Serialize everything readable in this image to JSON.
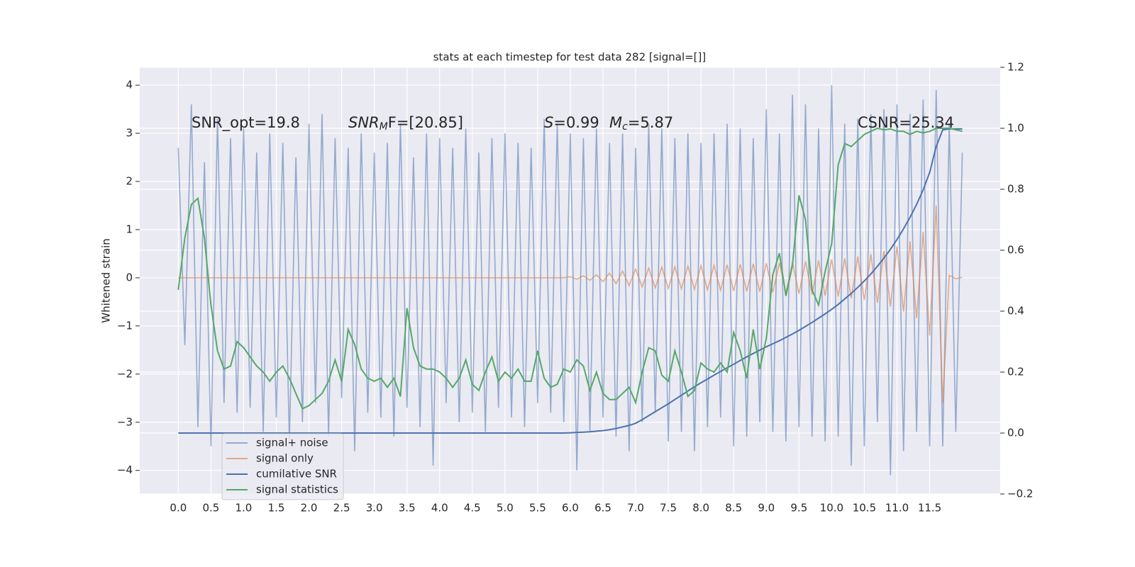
{
  "chart_data": {
    "type": "line",
    "title": "stats at each timestep for test data 282 [signal=[]]",
    "ylabel": "Whitened strain",
    "grid": true,
    "legend": "lower left",
    "annotations": [
      {
        "text": "SNR_opt=19.8"
      },
      {
        "text": "SNR",
        "sub": "M",
        "rest": "F=[20.85]"
      },
      {
        "text": "S",
        "rest": "=0.99"
      },
      {
        "text": "M",
        "sub": "c",
        "rest": "=5.87"
      },
      {
        "text": "CSNR=25.34"
      }
    ],
    "xlim": [
      -0.59,
      12.58
    ],
    "xticks": [
      {
        "value": 0,
        "label": "0.0"
      },
      {
        "value": 0.5,
        "label": "0.5"
      },
      {
        "value": 1,
        "label": "1.0"
      },
      {
        "value": 1.5,
        "label": "1.5"
      },
      {
        "value": 2,
        "label": "2.0"
      },
      {
        "value": 2.5,
        "label": "2.5"
      },
      {
        "value": 3,
        "label": "3.0"
      },
      {
        "value": 3.5,
        "label": "3.5"
      },
      {
        "value": 4,
        "label": "4.0"
      },
      {
        "value": 4.5,
        "label": "4.5"
      },
      {
        "value": 5,
        "label": "5.0"
      },
      {
        "value": 5.5,
        "label": "5.5"
      },
      {
        "value": 6,
        "label": "6.0"
      },
      {
        "value": 6.5,
        "label": "6.5"
      },
      {
        "value": 7,
        "label": "7.0"
      },
      {
        "value": 7.5,
        "label": "7.5"
      },
      {
        "value": 8,
        "label": "8.0"
      },
      {
        "value": 8.5,
        "label": "8.5"
      },
      {
        "value": 9,
        "label": "9.0"
      },
      {
        "value": 9.5,
        "label": "9.5"
      },
      {
        "value": 10,
        "label": "10.0"
      },
      {
        "value": 10.5,
        "label": "10.5"
      },
      {
        "value": 11,
        "label": "11.0"
      },
      {
        "value": 11.5,
        "label": "11.5"
      }
    ],
    "ylim": [
      -4.49,
      4.37
    ],
    "yticks": [
      {
        "value": -4,
        "label": "−4"
      },
      {
        "value": -3,
        "label": "−3"
      },
      {
        "value": -2,
        "label": "−2"
      },
      {
        "value": -1,
        "label": "−1"
      },
      0,
      1,
      2,
      3,
      4
    ],
    "y2lim": [
      -0.2,
      1.2
    ],
    "y2ticks": [
      {
        "value": -0.2,
        "label": "−0.2"
      },
      {
        "value": 0,
        "label": "0.0"
      },
      {
        "value": 0.2,
        "label": "0.2"
      },
      {
        "value": 0.4,
        "label": "0.4"
      },
      {
        "value": 0.6,
        "label": "0.6"
      },
      {
        "value": 0.8,
        "label": "0.8"
      },
      {
        "value": 1,
        "label": "1.0"
      },
      {
        "value": 1.2,
        "label": "1.2"
      }
    ],
    "x": [
      0,
      0.1,
      0.2,
      0.3,
      0.4,
      0.5,
      0.6,
      0.7,
      0.8,
      0.9,
      1,
      1.1,
      1.2,
      1.3,
      1.4,
      1.5,
      1.6,
      1.7,
      1.8,
      1.9,
      2,
      2.1,
      2.2,
      2.3,
      2.4,
      2.5,
      2.6,
      2.7,
      2.8,
      2.9,
      3,
      3.1,
      3.2,
      3.3,
      3.4,
      3.5,
      3.6,
      3.7,
      3.8,
      3.9,
      4,
      4.1,
      4.2,
      4.3,
      4.4,
      4.5,
      4.6,
      4.7,
      4.8,
      4.9,
      5,
      5.1,
      5.2,
      5.3,
      5.4,
      5.5,
      5.6,
      5.7,
      5.8,
      5.9,
      6,
      6.1,
      6.2,
      6.3,
      6.4,
      6.5,
      6.6,
      6.7,
      6.8,
      6.9,
      7,
      7.1,
      7.2,
      7.3,
      7.4,
      7.5,
      7.6,
      7.7,
      7.8,
      7.9,
      8,
      8.1,
      8.2,
      8.3,
      8.4,
      8.5,
      8.6,
      8.7,
      8.8,
      8.9,
      9,
      9.1,
      9.2,
      9.3,
      9.4,
      9.5,
      9.6,
      9.7,
      9.8,
      9.9,
      10,
      10.1,
      10.2,
      10.3,
      10.4,
      10.5,
      10.6,
      10.7,
      10.8,
      10.9,
      11,
      11.1,
      11.2,
      11.3,
      11.4,
      11.5,
      11.6,
      11.7,
      11.8,
      11.9,
      12
    ],
    "series": [
      {
        "name": "signal+ noise",
        "color": "#4c72b0",
        "opacity": 0.55,
        "axis": "y",
        "values": [
          2.7,
          -1.4,
          3.6,
          -3.1,
          2.4,
          -3.5,
          3.3,
          -2.6,
          2.9,
          -2.8,
          3.1,
          -2.7,
          2.6,
          -3.2,
          3.0,
          -2.9,
          2.8,
          -3.4,
          2.5,
          -3.0,
          3.2,
          -2.6,
          3.4,
          -3.3,
          2.9,
          -2.5,
          2.7,
          -3.6,
          3.0,
          -2.8,
          2.6,
          -2.9,
          2.8,
          -3.3,
          3.2,
          -2.7,
          2.5,
          -3.1,
          3.0,
          -3.9,
          2.9,
          -2.6,
          2.7,
          -3.0,
          3.1,
          -2.8,
          2.6,
          -3.2,
          2.9,
          -2.7,
          3.0,
          -2.9,
          2.8,
          -3.1,
          2.7,
          -2.6,
          3.3,
          -2.8,
          3.2,
          -3.0,
          3.0,
          -4.0,
          2.9,
          -3.2,
          3.1,
          -2.9,
          2.8,
          -3.3,
          3.0,
          -3.6,
          2.7,
          -3.0,
          3.2,
          -2.8,
          3.1,
          -3.4,
          2.9,
          -3.2,
          3.0,
          -3.6,
          2.8,
          -3.1,
          3.0,
          -2.9,
          3.2,
          -3.5,
          3.1,
          -3.3,
          2.9,
          -3.0,
          3.5,
          -3.2,
          3.0,
          -3.4,
          3.8,
          -3.1,
          3.6,
          -3.3,
          3.1,
          -3.4,
          4.0,
          -3.3,
          3.2,
          -3.9,
          3.3,
          -3.5,
          3.4,
          -3.0,
          3.5,
          -4.1,
          3.6,
          -3.6,
          3.4,
          -3.2,
          3.7,
          -3.5,
          3.9,
          -3.5,
          3.2,
          -3.2,
          2.6
        ]
      },
      {
        "name": "signal only",
        "color": "#dd8452",
        "opacity": 0.65,
        "axis": "y",
        "values": [
          0,
          0,
          0,
          0,
          0,
          0,
          0,
          0,
          0,
          0,
          0,
          0,
          0,
          0,
          0,
          0,
          0,
          0,
          0,
          0,
          0,
          0,
          0,
          0,
          0,
          0,
          0,
          0,
          0,
          0,
          0,
          0,
          0,
          0,
          0,
          0,
          0,
          0,
          0,
          0,
          0,
          0,
          0,
          0,
          0,
          0,
          0,
          0,
          0,
          0,
          0,
          0,
          0,
          0,
          0,
          0,
          0,
          0,
          0,
          0,
          0.02,
          -0.03,
          0.04,
          -0.05,
          0.06,
          -0.08,
          0.1,
          -0.12,
          0.14,
          -0.16,
          0.18,
          -0.19,
          0.2,
          -0.21,
          0.22,
          -0.22,
          0.23,
          -0.23,
          0.24,
          -0.24,
          0.25,
          -0.25,
          0.26,
          -0.26,
          0.27,
          -0.27,
          0.28,
          -0.28,
          0.29,
          -0.29,
          0.3,
          -0.3,
          0.31,
          -0.31,
          0.32,
          -0.33,
          0.34,
          -0.35,
          0.36,
          -0.37,
          0.38,
          -0.39,
          0.4,
          -0.42,
          0.44,
          -0.46,
          0.49,
          -0.52,
          0.56,
          -0.6,
          0.65,
          -0.7,
          0.76,
          -0.84,
          0.95,
          -1.2,
          1.5,
          -2.6,
          0.05,
          -0.02,
          0.01
        ]
      },
      {
        "name": "cumilative SNR",
        "color": "#4c72b0",
        "opacity": 1,
        "axis": "y2",
        "values": [
          0,
          0,
          0,
          0,
          0,
          0,
          0,
          0,
          0,
          0,
          0,
          0,
          0,
          0,
          0,
          0,
          0,
          0,
          0,
          0,
          0,
          0,
          0,
          0,
          0,
          0,
          0,
          0,
          0,
          0,
          0,
          0,
          0,
          0,
          0,
          0,
          0,
          0,
          0,
          0,
          0,
          0,
          0,
          0,
          0,
          0,
          0,
          0,
          0,
          0,
          0,
          0,
          0,
          0,
          0,
          0,
          0,
          0,
          0,
          0,
          0.001,
          0.002,
          0.003,
          0.004,
          0.006,
          0.008,
          0.011,
          0.015,
          0.02,
          0.025,
          0.032,
          0.044,
          0.057,
          0.07,
          0.083,
          0.096,
          0.11,
          0.124,
          0.138,
          0.152,
          0.165,
          0.177,
          0.19,
          0.202,
          0.214,
          0.226,
          0.238,
          0.25,
          0.261,
          0.272,
          0.283,
          0.293,
          0.303,
          0.314,
          0.325,
          0.337,
          0.35,
          0.363,
          0.377,
          0.391,
          0.406,
          0.422,
          0.44,
          0.458,
          0.478,
          0.499,
          0.522,
          0.547,
          0.574,
          0.603,
          0.635,
          0.67,
          0.708,
          0.75,
          0.798,
          0.855,
          0.94,
          0.995,
          0.998,
          0.998,
          0.998
        ]
      },
      {
        "name": "signal statistics",
        "color": "#55a868",
        "opacity": 1,
        "axis": "y2",
        "values": [
          0.47,
          0.64,
          0.75,
          0.77,
          0.64,
          0.42,
          0.27,
          0.21,
          0.22,
          0.3,
          0.28,
          0.25,
          0.22,
          0.2,
          0.17,
          0.2,
          0.22,
          0.18,
          0.13,
          0.08,
          0.09,
          0.11,
          0.13,
          0.17,
          0.24,
          0.17,
          0.34,
          0.29,
          0.21,
          0.18,
          0.17,
          0.18,
          0.15,
          0.18,
          0.12,
          0.41,
          0.28,
          0.22,
          0.21,
          0.21,
          0.2,
          0.18,
          0.15,
          0.18,
          0.24,
          0.16,
          0.14,
          0.2,
          0.25,
          0.17,
          0.2,
          0.18,
          0.21,
          0.17,
          0.17,
          0.27,
          0.18,
          0.15,
          0.16,
          0.21,
          0.2,
          0.24,
          0.22,
          0.14,
          0.2,
          0.13,
          0.11,
          0.11,
          0.13,
          0.15,
          0.1,
          0.2,
          0.28,
          0.27,
          0.19,
          0.17,
          0.27,
          0.2,
          0.12,
          0.14,
          0.23,
          0.21,
          0.2,
          0.23,
          0.2,
          0.33,
          0.27,
          0.18,
          0.34,
          0.21,
          0.31,
          0.52,
          0.59,
          0.45,
          0.55,
          0.78,
          0.7,
          0.47,
          0.42,
          0.53,
          0.62,
          0.88,
          0.95,
          0.94,
          0.96,
          0.98,
          0.99,
          1.0,
          0.995,
          0.998,
          0.99,
          0.99,
          0.98,
          0.99,
          0.985,
          0.99,
          1.0,
          1.0,
          1.0,
          0.995,
          0.99
        ]
      }
    ]
  }
}
